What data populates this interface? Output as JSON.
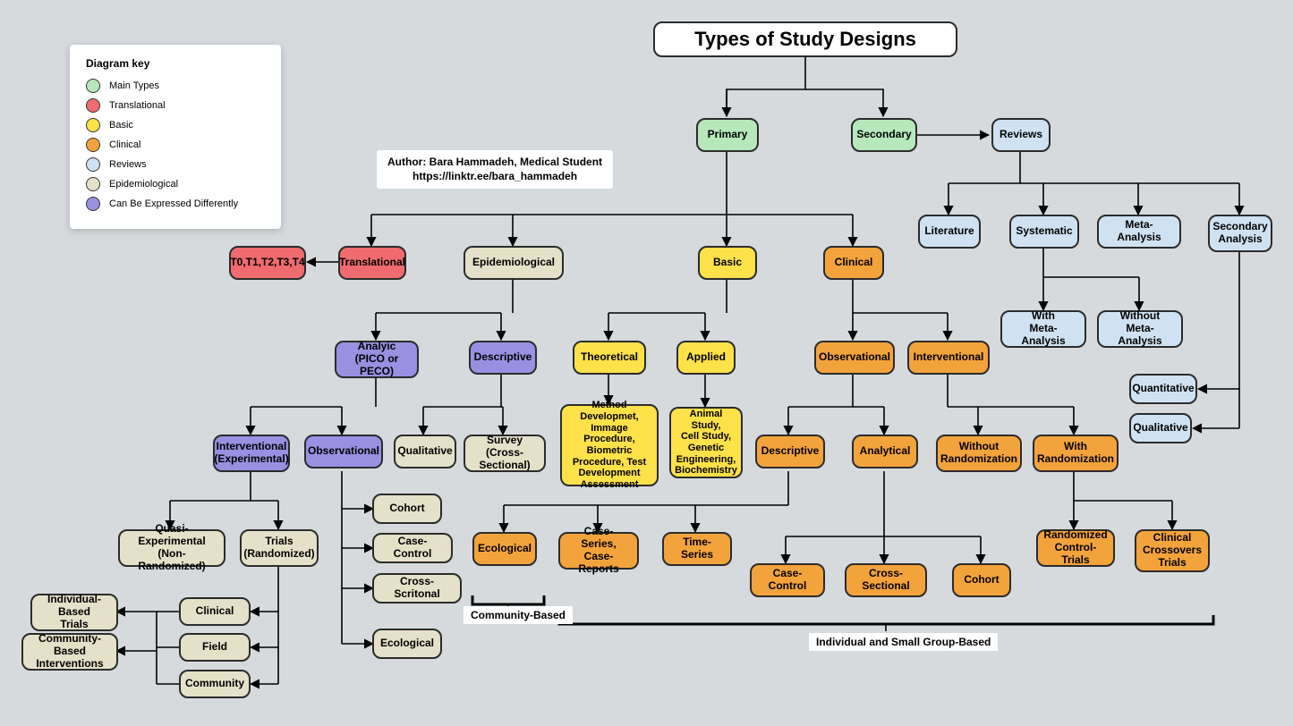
{
  "title": "Types of Study Designs",
  "author_line1": "Author: Bara Hammadeh, Medical Student",
  "author_line2": "https://linktr.ee/bara_hammadeh",
  "legend": {
    "heading": "Diagram key",
    "items": [
      {
        "label": "Main Types",
        "color": "#b6e8bb"
      },
      {
        "label": "Translational",
        "color": "#ef6b6f"
      },
      {
        "label": "Basic",
        "color": "#ffe14a"
      },
      {
        "label": "Clinical",
        "color": "#f3a33c"
      },
      {
        "label": "Reviews",
        "color": "#cfe2f3"
      },
      {
        "label": "Epidemiological",
        "color": "#e5e1c8"
      },
      {
        "label": "Can Be Expressed Differently",
        "color": "#9a90e2"
      }
    ]
  },
  "colors": {
    "green": "#b6e8bb",
    "red": "#ef6b6f",
    "yellow": "#ffe14a",
    "orange": "#f3a33c",
    "blue": "#cfe2f3",
    "tan": "#e5e1c8",
    "purple": "#9a90e2"
  },
  "nodes": {
    "primary": "Primary",
    "secondary": "Secondary",
    "reviews": "Reviews",
    "literature": "Literature",
    "systematic": "Systematic",
    "meta_analysis": "Meta-Analysis",
    "secondary_analysis": "Secondary\nAnalysis",
    "with_ma": "With\nMeta-Analysis",
    "without_ma": "Without\nMeta-Analysis",
    "quantitative": "Quantitative",
    "qualitative": "Qualitative",
    "translational": "Translational",
    "t0": "T0,T1,T2,T3,T4",
    "epi": "Epidemiological",
    "basic": "Basic",
    "clinical": "Clinical",
    "analytic": "Analyic\n(PICO or PECO)",
    "descriptive": "Descriptive",
    "theoretical": "Theoretical",
    "applied": "Applied",
    "observational_c": "Observational",
    "interventional_c": "Interventional",
    "method_dev": "Method Developmet,\nImmage Procedure,\nBiometric\nProcedure, Test\nDevelopment\nAssessment",
    "animal": "Animal Study,\nCell Study,\nGenetic\nEngineering,\nBiochemistry",
    "interventional_e": "Interventional\n(Experimental)",
    "observational_e": "Observational",
    "qualitative_e": "Qualitative",
    "survey": "Survey\n(Cross-Sectional)",
    "quasi": "Quasi-Experimental\n(Non-Randomized)",
    "trials": "Trials\n(Randomized)",
    "clinical_t": "Clinical",
    "field": "Field",
    "community_t": "Community",
    "indiv_trials": "Individual-Based\nTrials",
    "comm_interv": "Community-Based\nInterventions",
    "cohort_e": "Cohort",
    "case_control_e": "Case-Control",
    "cross_sect_e": "Cross-Scritonal",
    "ecological_e": "Ecological",
    "descriptive_c": "Descriptive",
    "analytical_c": "Analytical",
    "without_rand": "Without\nRandomization",
    "with_rand": "With\nRandomization",
    "ecological_c": "Ecological",
    "case_series": "Case-Series,\nCase-Reports",
    "time_series": "Time-Series",
    "case_control_c": "Case-Control",
    "cross_sect_c": "Cross-Sectional",
    "cohort_c": "Cohort",
    "rct": "Randomized\nControl-Trials",
    "crossover": "Clinical\nCrossovers\nTrials"
  },
  "captions": {
    "community_based": "Community-Based",
    "indiv_small": "Individual and Small Group-Based"
  }
}
